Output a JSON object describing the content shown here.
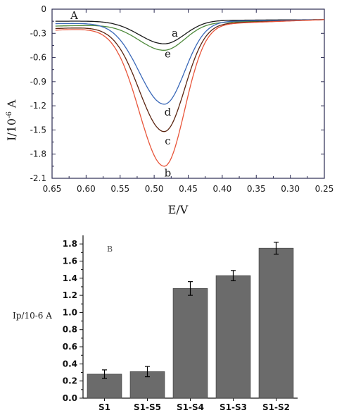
{
  "chart_data": [
    {
      "panel_label": "A",
      "type": "line",
      "xlabel": "E/V",
      "ylabel_base": "I/10",
      "ylabel_exp": "-6",
      "ylabel_unit": " A",
      "xlim": [
        0.65,
        0.25
      ],
      "ylim": [
        -2.1,
        0
      ],
      "x_ticks": [
        "0.65",
        "0.60",
        "0.55",
        "0.50",
        "0.45",
        "0.40",
        "0.35",
        "0.30",
        "0.25"
      ],
      "y_ticks": [
        "0",
        "-0.3",
        "-0.6",
        "-0.9",
        "-1.2",
        "-1.5",
        "-1.8",
        "-2.1"
      ],
      "peak_potential": 0.485,
      "grid": false,
      "series": [
        {
          "name": "a",
          "color": "#1a1a1a",
          "y_start": -0.15,
          "y_end": -0.13,
          "peak": -0.43
        },
        {
          "name": "e",
          "color": "#4f8a3c",
          "y_start": -0.21,
          "y_end": -0.13,
          "peak": -0.51
        },
        {
          "name": "d",
          "color": "#3a68b8",
          "y_start": -0.18,
          "y_end": -0.13,
          "peak": -1.18
        },
        {
          "name": "c",
          "color": "#5a2410",
          "y_start": -0.24,
          "y_end": -0.13,
          "peak": -1.52
        },
        {
          "name": "b",
          "color": "#e8553a",
          "y_start": -0.26,
          "y_end": -0.13,
          "peak": -1.95
        }
      ]
    },
    {
      "panel_label": "B",
      "type": "bar",
      "ylabel": "Ip/10-6 A",
      "categories": [
        "S1",
        "S1-S5",
        "S1-S4",
        "S1-S3",
        "S1-S2"
      ],
      "values": [
        0.28,
        0.31,
        1.28,
        1.43,
        1.75
      ],
      "errors": [
        0.05,
        0.06,
        0.08,
        0.06,
        0.07
      ],
      "ylim": [
        0,
        1.9
      ],
      "y_ticks": [
        "0.0",
        "0.2",
        "0.4",
        "0.6",
        "0.8",
        "1.0",
        "1.2",
        "1.4",
        "1.6",
        "1.8"
      ],
      "bar_color": "#6b6b6b",
      "grid": false
    }
  ]
}
